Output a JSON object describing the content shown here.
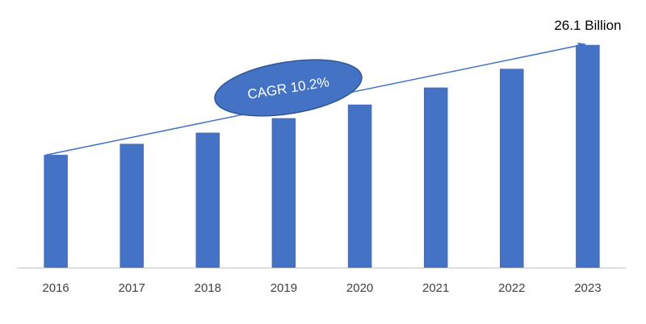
{
  "chart_data": {
    "type": "bar",
    "title": "",
    "xlabel": "",
    "ylabel": "",
    "categories": [
      "2016",
      "2017",
      "2018",
      "2019",
      "2020",
      "2021",
      "2022",
      "2023"
    ],
    "values": [
      13.2,
      14.5,
      15.8,
      17.5,
      19.1,
      21.1,
      23.3,
      26.1
    ],
    "ylim": [
      0,
      26.1
    ],
    "grid": false,
    "legend": "none",
    "annotations": {
      "end_value_label": "26.1 Billion",
      "cagr_label": "CAGR 10.2%"
    },
    "colors": {
      "bar": "#4472C4",
      "bar_edge": "#3b65b1",
      "trend_arrow": "#4472C4",
      "ellipse_fill": "#4472C4",
      "ellipse_stroke": "#2F5597",
      "axis": "#BFBFBF"
    }
  }
}
